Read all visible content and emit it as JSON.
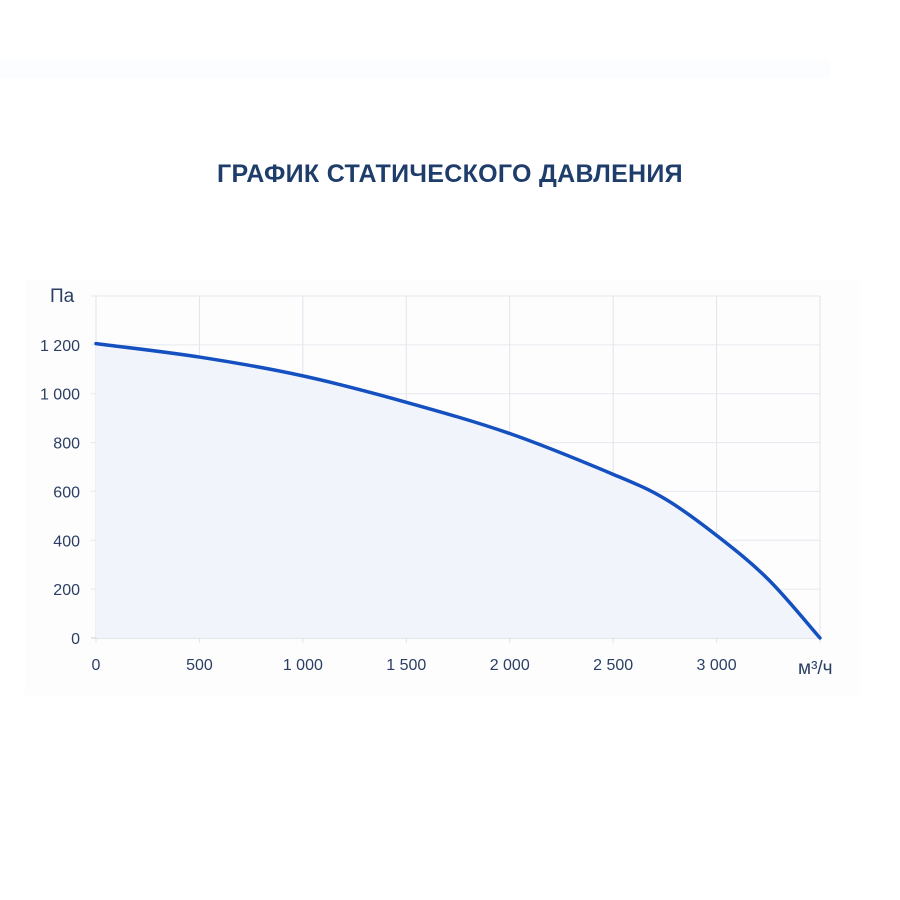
{
  "title": "ГРАФИК СТАТИЧЕСКОГО ДАВЛЕНИЯ",
  "chart_data": {
    "type": "area",
    "title": "ГРАФИК СТАТИЧЕСКОГО ДАВЛЕНИЯ",
    "xlabel": "м³/ч",
    "ylabel": "Па",
    "xlim": [
      0,
      3500
    ],
    "ylim": [
      0,
      1400
    ],
    "x_ticks": [
      0,
      500,
      1000,
      1500,
      2000,
      2500,
      3000
    ],
    "x_tick_labels": [
      "0",
      "500",
      "1 000",
      "1 500",
      "2 000",
      "2 500",
      "3 000"
    ],
    "y_ticks": [
      0,
      200,
      400,
      600,
      800,
      1000,
      1200
    ],
    "y_tick_labels": [
      "0",
      "200",
      "400",
      "600",
      "800",
      "1 000",
      "1 200"
    ],
    "grid": true,
    "series": [
      {
        "x": [
          0,
          500,
          1000,
          1500,
          2000,
          2500,
          2750,
          3000,
          3250,
          3500
        ],
        "y": [
          1205,
          1150,
          1073,
          965,
          837,
          670,
          570,
          420,
          240,
          0
        ]
      }
    ],
    "line_color": "#1450c0",
    "fill_color": "#f1f5fb"
  }
}
